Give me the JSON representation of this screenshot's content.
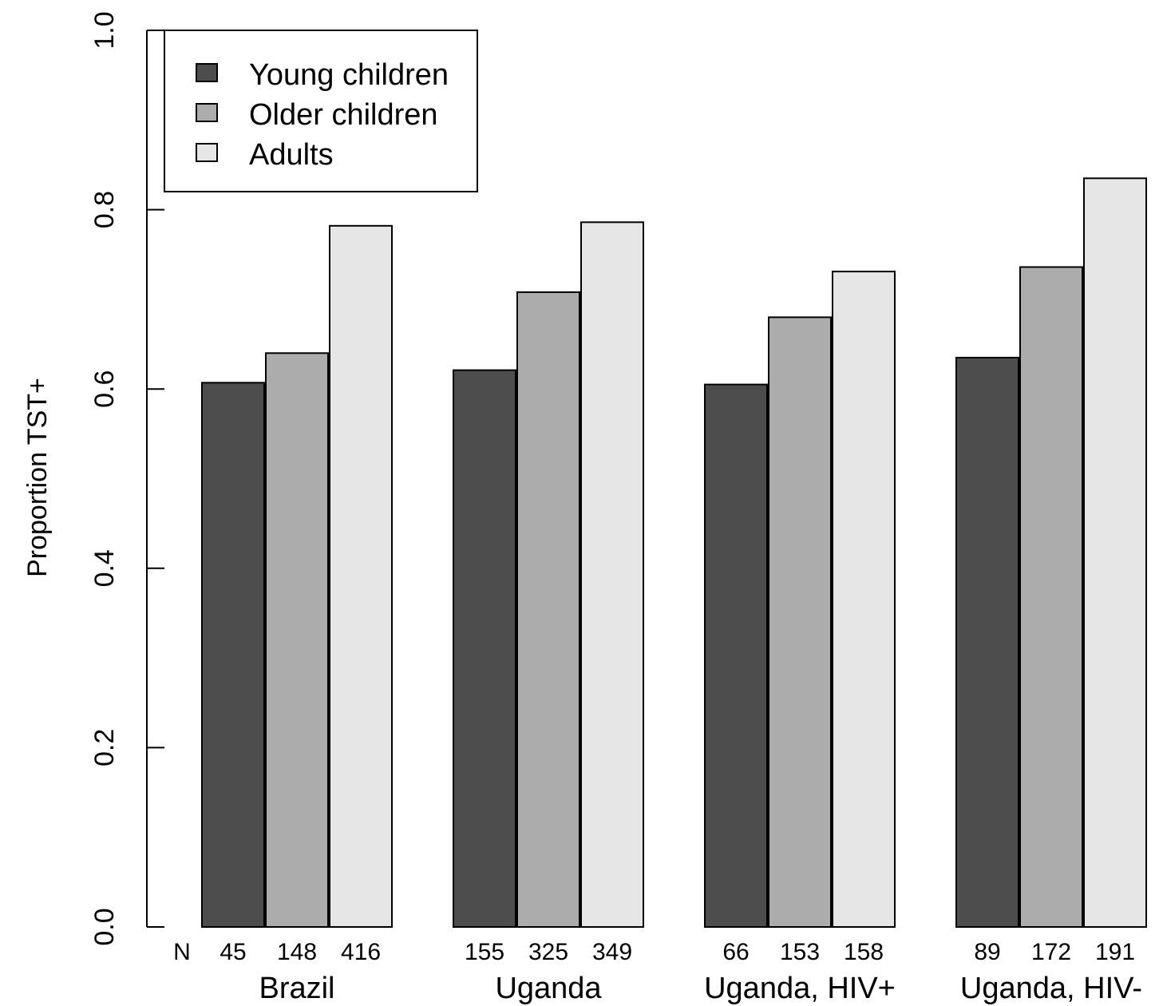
{
  "chart_data": {
    "type": "bar",
    "ylabel": "Proportion TST+",
    "ylim": [
      0,
      1.0
    ],
    "yticks": [
      "0.0",
      "0.2",
      "0.4",
      "0.6",
      "0.8",
      "1.0"
    ],
    "n_prefix": "N",
    "categories": [
      "Brazil",
      "Uganda",
      "Uganda, HIV+",
      "Uganda, HIV-"
    ],
    "series": [
      {
        "name": "Young children",
        "color": "#4d4d4d",
        "values": [
          0.607,
          0.621,
          0.605,
          0.635
        ],
        "n": [
          "45",
          "155",
          "66",
          "89"
        ]
      },
      {
        "name": "Older children",
        "color": "#acacac",
        "values": [
          0.64,
          0.708,
          0.68,
          0.736
        ],
        "n": [
          "148",
          "325",
          "153",
          "172"
        ]
      },
      {
        "name": "Adults",
        "color": "#e6e6e6",
        "values": [
          0.782,
          0.786,
          0.731,
          0.835
        ],
        "n": [
          "416",
          "349",
          "158",
          "191"
        ]
      }
    ],
    "legend_position": "top-left",
    "grid": false
  }
}
